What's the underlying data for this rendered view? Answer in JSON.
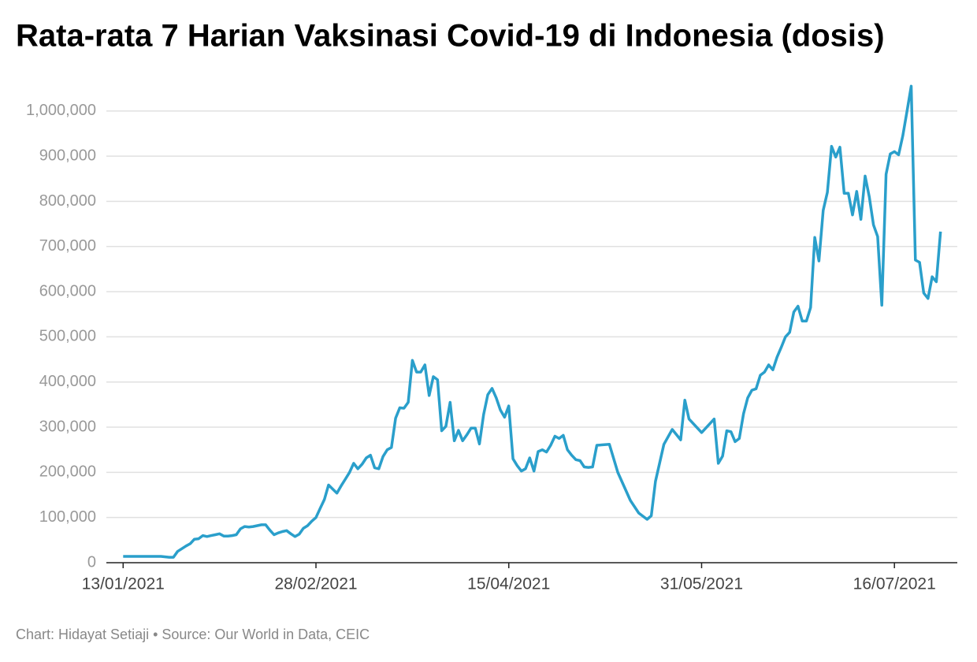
{
  "chart_data": {
    "type": "line",
    "title": "Rata-rata 7 Harian Vaksinasi Covid-19 di Indonesia (dosis)",
    "footer": "Chart: Hidayat Setiaji • Source: Our World in Data, CEIC",
    "color": "#2a9fcb",
    "grid": true,
    "xlim": [
      "09/01/2021",
      "31/07/2021"
    ],
    "xticks": [
      "13/01/2021",
      "28/02/2021",
      "15/04/2021",
      "31/05/2021",
      "16/07/2021"
    ],
    "ylim": [
      0,
      1080000
    ],
    "yticks": [
      0,
      {
        "value": 100000,
        "label": "100,000"
      },
      {
        "value": 200000,
        "label": "200,000"
      },
      {
        "value": 300000,
        "label": "300,000"
      },
      {
        "value": 400000,
        "label": "400,000"
      },
      {
        "value": 500000,
        "label": "500,000"
      },
      {
        "value": 600000,
        "label": "600,000"
      },
      {
        "value": 700000,
        "label": "700,000"
      },
      {
        "value": 800000,
        "label": "800,000"
      },
      {
        "value": 900000,
        "label": "900,000"
      },
      {
        "value": 1000000,
        "label": "1,000,000"
      }
    ],
    "x": [
      "13/01/2021",
      "18/01/2021",
      "22/01/2021",
      "24/01/2021",
      "25/01/2021",
      "26/01/2021",
      "28/01/2021",
      "29/01/2021",
      "30/01/2021",
      "31/01/2021",
      "01/02/2021",
      "02/02/2021",
      "03/02/2021",
      "04/02/2021",
      "05/02/2021",
      "06/02/2021",
      "07/02/2021",
      "08/02/2021",
      "09/02/2021",
      "10/02/2021",
      "11/02/2021",
      "12/02/2021",
      "13/02/2021",
      "14/02/2021",
      "15/02/2021",
      "16/02/2021",
      "17/02/2021",
      "18/02/2021",
      "19/02/2021",
      "20/02/2021",
      "21/02/2021",
      "22/02/2021",
      "23/02/2021",
      "24/02/2021",
      "25/02/2021",
      "26/02/2021",
      "27/02/2021",
      "28/02/2021",
      "01/03/2021",
      "02/03/2021",
      "03/03/2021",
      "04/03/2021",
      "05/03/2021",
      "06/03/2021",
      "07/03/2021",
      "08/03/2021",
      "09/03/2021",
      "10/03/2021",
      "11/03/2021",
      "12/03/2021",
      "13/03/2021",
      "14/03/2021",
      "15/03/2021",
      "16/03/2021",
      "17/03/2021",
      "18/03/2021",
      "19/03/2021",
      "20/03/2021",
      "21/03/2021",
      "22/03/2021",
      "23/03/2021",
      "24/03/2021",
      "25/03/2021",
      "26/03/2021",
      "27/03/2021",
      "28/03/2021",
      "29/03/2021",
      "30/03/2021",
      "31/03/2021",
      "01/04/2021",
      "02/04/2021",
      "03/04/2021",
      "04/04/2021",
      "05/04/2021",
      "06/04/2021",
      "07/04/2021",
      "08/04/2021",
      "09/04/2021",
      "10/04/2021",
      "11/04/2021",
      "12/04/2021",
      "13/04/2021",
      "14/04/2021",
      "15/04/2021",
      "16/04/2021",
      "17/04/2021",
      "18/04/2021",
      "19/04/2021",
      "20/04/2021",
      "21/04/2021",
      "22/04/2021",
      "23/04/2021",
      "24/04/2021",
      "25/04/2021",
      "26/04/2021",
      "27/04/2021",
      "28/04/2021",
      "29/04/2021",
      "30/04/2021",
      "01/05/2021",
      "02/05/2021",
      "03/05/2021",
      "04/05/2021",
      "05/05/2021",
      "06/05/2021",
      "09/05/2021",
      "11/05/2021",
      "14/05/2021",
      "16/05/2021",
      "18/05/2021",
      "19/05/2021",
      "20/05/2021",
      "22/05/2021",
      "24/05/2021",
      "26/05/2021",
      "27/05/2021",
      "28/05/2021",
      "31/05/2021",
      "01/06/2021",
      "03/06/2021",
      "04/06/2021",
      "05/06/2021",
      "06/06/2021",
      "07/06/2021",
      "08/06/2021",
      "09/06/2021",
      "10/06/2021",
      "11/06/2021",
      "12/06/2021",
      "13/06/2021",
      "14/06/2021",
      "15/06/2021",
      "16/06/2021",
      "17/06/2021",
      "18/06/2021",
      "19/06/2021",
      "20/06/2021",
      "21/06/2021",
      "22/06/2021",
      "23/06/2021",
      "24/06/2021",
      "25/06/2021",
      "26/06/2021",
      "27/06/2021",
      "28/06/2021",
      "29/06/2021",
      "30/06/2021",
      "01/07/2021",
      "02/07/2021",
      "03/07/2021",
      "04/07/2021",
      "05/07/2021",
      "06/07/2021",
      "07/07/2021",
      "08/07/2021",
      "09/07/2021",
      "10/07/2021",
      "11/07/2021",
      "12/07/2021",
      "13/07/2021",
      "14/07/2021",
      "15/07/2021",
      "16/07/2021",
      "17/07/2021",
      "18/07/2021",
      "19/07/2021",
      "20/07/2021",
      "21/07/2021",
      "22/07/2021",
      "23/07/2021",
      "24/07/2021",
      "25/07/2021",
      "26/07/2021",
      "27/07/2021"
    ],
    "values": [
      14000,
      14000,
      14000,
      12000,
      12000,
      25000,
      37000,
      42000,
      52000,
      53000,
      60000,
      58000,
      60000,
      62000,
      64000,
      59000,
      59000,
      60000,
      62000,
      75000,
      80000,
      79000,
      80000,
      82000,
      84000,
      84000,
      72000,
      62000,
      66000,
      69000,
      71000,
      64000,
      58000,
      63000,
      76000,
      82000,
      92000,
      100000,
      120000,
      140000,
      172000,
      163000,
      154000,
      170000,
      185000,
      200000,
      220000,
      208000,
      218000,
      232000,
      238000,
      210000,
      208000,
      235000,
      250000,
      255000,
      320000,
      343000,
      342000,
      355000,
      448000,
      422000,
      422000,
      438000,
      370000,
      412000,
      405000,
      292000,
      302000,
      355000,
      270000,
      293000,
      270000,
      283000,
      298000,
      298000,
      263000,
      328000,
      372000,
      386000,
      365000,
      338000,
      322000,
      347000,
      230000,
      215000,
      203000,
      208000,
      232000,
      203000,
      246000,
      250000,
      245000,
      260000,
      280000,
      275000,
      282000,
      250000,
      238000,
      228000,
      226000,
      212000,
      211000,
      212000,
      260000,
      262000,
      200000,
      138000,
      110000,
      96000,
      104000,
      180000,
      262000,
      295000,
      272000,
      360000,
      318000,
      288000,
      298000,
      318000,
      220000,
      236000,
      292000,
      290000,
      268000,
      275000,
      330000,
      365000,
      382000,
      385000,
      415000,
      422000,
      438000,
      427000,
      455000,
      477000,
      500000,
      510000,
      555000,
      568000,
      535000,
      535000,
      565000,
      720000,
      668000,
      780000,
      820000,
      922000,
      898000,
      920000,
      818000,
      818000,
      770000,
      822000,
      760000,
      856000,
      810000,
      748000,
      722000,
      570000,
      860000,
      905000,
      910000,
      903000,
      945000,
      1000000,
      1055000,
      670000,
      665000,
      597000,
      585000,
      633000,
      622000,
      733000
    ]
  }
}
